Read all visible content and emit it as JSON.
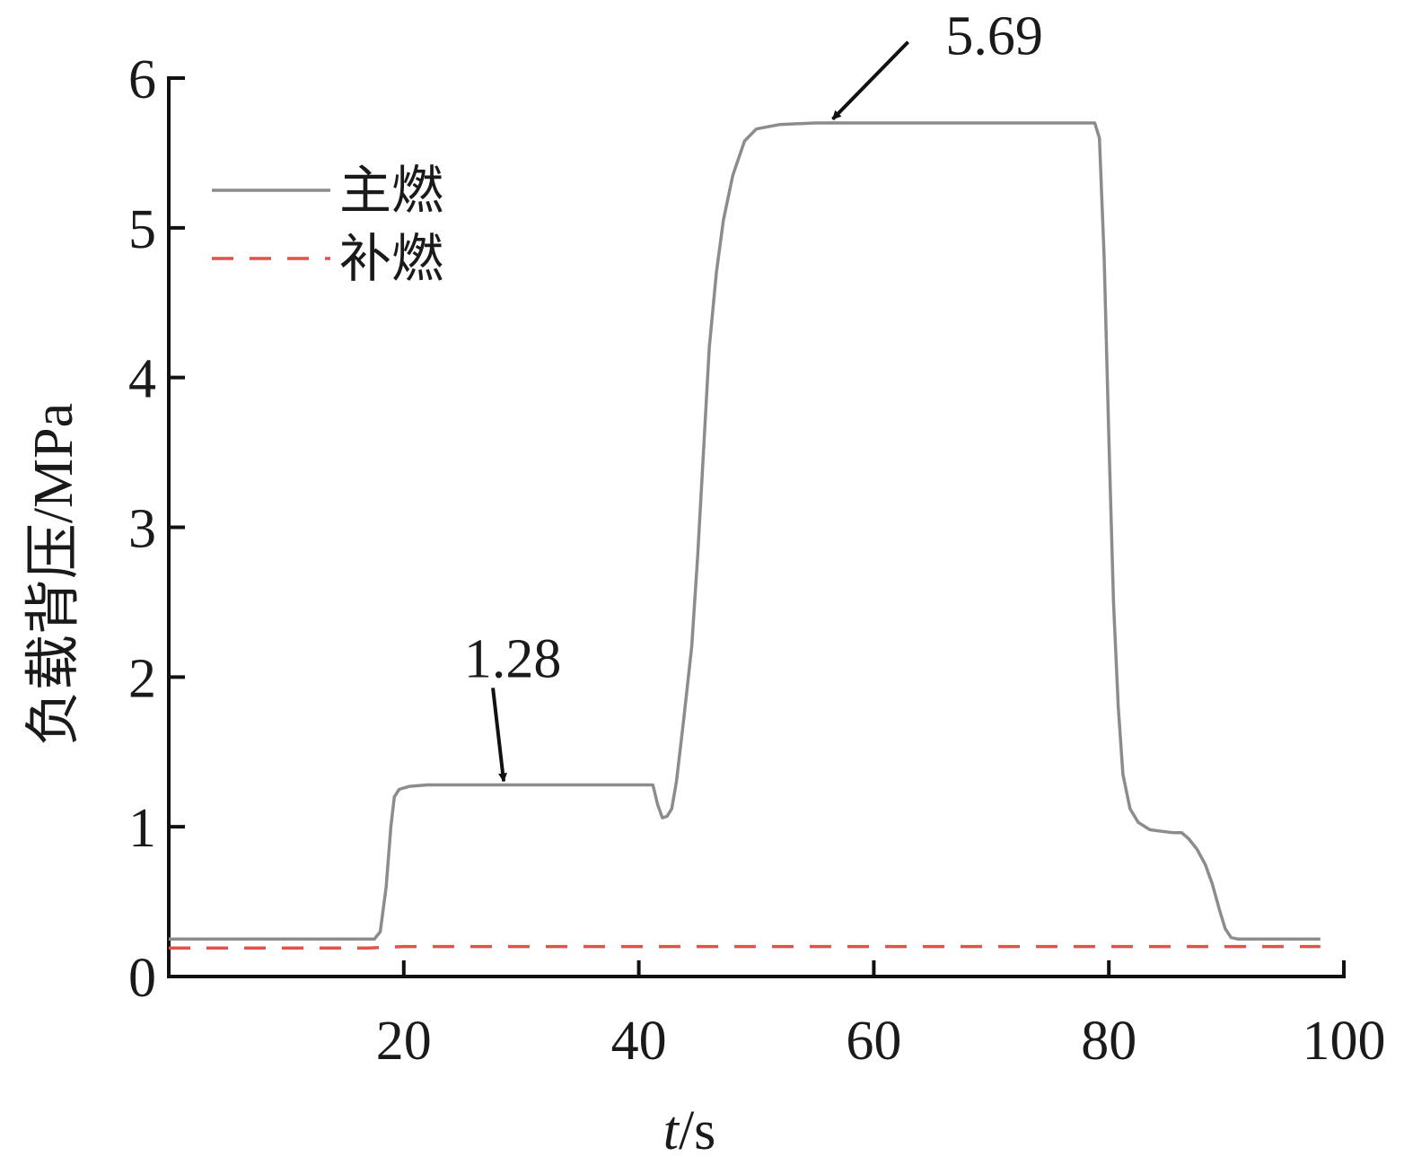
{
  "chart_data": {
    "type": "line",
    "xlabel_italic": "t",
    "xlabel_unit": "/s",
    "ylabel": "负载背压/MPa",
    "xlim": [
      0,
      100
    ],
    "ylim": [
      0,
      6
    ],
    "xticks": [
      20,
      40,
      60,
      80,
      100
    ],
    "yticks": [
      0,
      1,
      2,
      3,
      4,
      5,
      6
    ],
    "grid": false,
    "legend_position": "top-left",
    "series": [
      {
        "name": "主燃",
        "color": "#8c8c8c",
        "dash": "solid",
        "x": [
          0,
          17.5,
          18.0,
          18.5,
          18.9,
          19.2,
          19.6,
          20.5,
          22,
          30,
          41.2,
          41.6,
          42.0,
          42.4,
          42.8,
          43.2,
          43.8,
          44.5,
          45.0,
          45.5,
          46.0,
          46.6,
          47.2,
          48.0,
          49.0,
          50.0,
          52.0,
          55.0,
          60.0,
          70.0,
          78.8,
          79.2,
          79.6,
          80.0,
          80.4,
          80.8,
          81.2,
          81.8,
          82.5,
          83.5,
          84.5,
          85.5,
          86.2,
          86.8,
          87.5,
          88.2,
          88.8,
          89.4,
          89.9,
          90.4,
          91.0,
          92.0,
          98.0
        ],
        "y": [
          0.25,
          0.25,
          0.3,
          0.6,
          1.0,
          1.2,
          1.25,
          1.27,
          1.28,
          1.28,
          1.28,
          1.15,
          1.06,
          1.07,
          1.12,
          1.3,
          1.7,
          2.2,
          2.8,
          3.5,
          4.2,
          4.7,
          5.05,
          5.35,
          5.58,
          5.66,
          5.69,
          5.7,
          5.7,
          5.7,
          5.7,
          5.6,
          4.8,
          3.6,
          2.5,
          1.8,
          1.35,
          1.12,
          1.03,
          0.98,
          0.97,
          0.96,
          0.96,
          0.92,
          0.85,
          0.75,
          0.62,
          0.45,
          0.32,
          0.26,
          0.25,
          0.25,
          0.25
        ]
      },
      {
        "name": "补燃",
        "color": "#e0524a",
        "dash": "dashed",
        "x": [
          0,
          17,
          20,
          30,
          40,
          50,
          60,
          70,
          80,
          90,
          98
        ],
        "y": [
          0.19,
          0.19,
          0.2,
          0.2,
          0.2,
          0.2,
          0.2,
          0.2,
          0.2,
          0.2,
          0.2
        ]
      }
    ],
    "annotations": [
      {
        "text": "1.28",
        "x": 28.5,
        "y": 1.28
      },
      {
        "text": "5.69",
        "x": 56.5,
        "y": 5.69
      }
    ]
  }
}
